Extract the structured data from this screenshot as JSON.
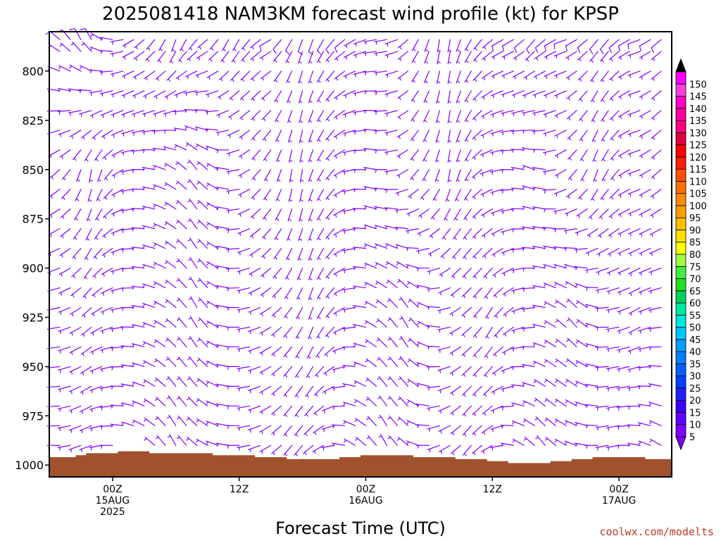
{
  "chart_data": {
    "type": "wind_barb_time_height",
    "title": "2025081418 NAM3KM forecast wind profile (kt) for KPSP",
    "xlabel": "Forecast Time (UTC)",
    "ylabel": "",
    "y_ticks": [
      800,
      825,
      850,
      875,
      900,
      925,
      950,
      975,
      1000
    ],
    "y_range_hpa": [
      780,
      1006
    ],
    "x_ticks": [
      {
        "hour": 6,
        "lines": [
          "00Z",
          "15AUG",
          "2025"
        ]
      },
      {
        "hour": 18,
        "lines": [
          "12Z"
        ]
      },
      {
        "hour": 30,
        "lines": [
          "00Z",
          "16AUG"
        ]
      },
      {
        "hour": 42,
        "lines": [
          "12Z"
        ]
      },
      {
        "hour": 54,
        "lines": [
          "00Z",
          "17AUG"
        ]
      }
    ],
    "x_range_hours": [
      0,
      59
    ],
    "barb_color": "#8000ff",
    "terrain_color": "#a0522d",
    "colorbar": {
      "levels": [
        5,
        10,
        15,
        20,
        25,
        30,
        35,
        40,
        45,
        50,
        55,
        60,
        65,
        70,
        75,
        80,
        85,
        90,
        95,
        100,
        105,
        110,
        115,
        120,
        125,
        130,
        135,
        140,
        145,
        150
      ],
      "colors": [
        "#8000ff",
        "#6000ff",
        "#3c00ff",
        "#2020ff",
        "#0040ff",
        "#0060ff",
        "#0080ff",
        "#00a0ff",
        "#00c8ff",
        "#00e8e0",
        "#00e8a0",
        "#00d060",
        "#20e020",
        "#40f040",
        "#a0ff40",
        "#ffff00",
        "#ffe000",
        "#ffc000",
        "#ffa000",
        "#ff8c00",
        "#ff7000",
        "#ff5000",
        "#ff2000",
        "#ff0000",
        "#e00040",
        "#ff0080",
        "#ff00a0",
        "#ff00c8",
        "#ff40e0",
        "#ff00ff"
      ],
      "top_triangle_color": "#000000",
      "bottom_triangle_color": "#8000ff"
    },
    "barb_levels_hpa": [
      784,
      790,
      800,
      810,
      820,
      830,
      840,
      850,
      860,
      870,
      880,
      890,
      900,
      910,
      920,
      930,
      940,
      950,
      960,
      970,
      980,
      990
    ],
    "surface_pressure_hpa": [
      [
        0,
        996
      ],
      [
        1,
        996
      ],
      [
        2,
        996
      ],
      [
        3,
        995
      ],
      [
        4,
        994
      ],
      [
        5,
        994
      ],
      [
        6,
        994
      ],
      [
        7,
        993
      ],
      [
        8,
        993
      ],
      [
        9,
        993
      ],
      [
        10,
        994
      ],
      [
        11,
        994
      ],
      [
        12,
        994
      ],
      [
        13,
        994
      ],
      [
        14,
        994
      ],
      [
        15,
        994
      ],
      [
        16,
        995
      ],
      [
        17,
        995
      ],
      [
        18,
        995
      ],
      [
        19,
        995
      ],
      [
        20,
        996
      ],
      [
        21,
        996
      ],
      [
        22,
        996
      ],
      [
        23,
        997
      ],
      [
        24,
        997
      ],
      [
        25,
        997
      ],
      [
        26,
        997
      ],
      [
        27,
        997
      ],
      [
        28,
        996
      ],
      [
        29,
        996
      ],
      [
        30,
        995
      ],
      [
        31,
        995
      ],
      [
        32,
        995
      ],
      [
        33,
        995
      ],
      [
        34,
        995
      ],
      [
        35,
        996
      ],
      [
        36,
        996
      ],
      [
        37,
        996
      ],
      [
        38,
        996
      ],
      [
        39,
        997
      ],
      [
        40,
        997
      ],
      [
        41,
        997
      ],
      [
        42,
        998
      ],
      [
        43,
        998
      ],
      [
        44,
        999
      ],
      [
        45,
        999
      ],
      [
        46,
        999
      ],
      [
        47,
        999
      ],
      [
        48,
        998
      ],
      [
        49,
        998
      ],
      [
        50,
        997
      ],
      [
        51,
        997
      ],
      [
        52,
        996
      ],
      [
        53,
        996
      ],
      [
        54,
        996
      ],
      [
        55,
        996
      ],
      [
        56,
        996
      ],
      [
        57,
        997
      ],
      [
        58,
        997
      ],
      [
        59,
        997
      ]
    ],
    "wind_samples": [
      {
        "p": 784,
        "dir": [
          300,
          310,
          320,
          330,
          330,
          300,
          280,
          260,
          240,
          230,
          220,
          210,
          200,
          210,
          220,
          230,
          220,
          210,
          210,
          220,
          230,
          240,
          220,
          210,
          200,
          200,
          210,
          220,
          230,
          240,
          250,
          260,
          260,
          250,
          230,
          210,
          200,
          190,
          190,
          200,
          210,
          220,
          230,
          240,
          240,
          230,
          220,
          230,
          240,
          250,
          240,
          230,
          220,
          220,
          230,
          240,
          250,
          240,
          230,
          230
        ],
        "spd": [
          10,
          10,
          10,
          10,
          10,
          8,
          8,
          8,
          8,
          8,
          8,
          8,
          8,
          8,
          8,
          8,
          8,
          8,
          8,
          8,
          8,
          10,
          10,
          10,
          10,
          10,
          10,
          10,
          10,
          8,
          8,
          8,
          8,
          8,
          8,
          8,
          8,
          8,
          8,
          8,
          8,
          8,
          8,
          10,
          10,
          10,
          10,
          10,
          10,
          10,
          10,
          10,
          10,
          10,
          10,
          10,
          10,
          10,
          10,
          10
        ]
      },
      {
        "p": 850,
        "dir": [
          240,
          230,
          220,
          200,
          190,
          200,
          220,
          240,
          260,
          270,
          280,
          290,
          300,
          310,
          320,
          310,
          300,
          280,
          260,
          240,
          220,
          210,
          200,
          190,
          190,
          200,
          210,
          220,
          240,
          260,
          270,
          280,
          270,
          260,
          240,
          220,
          210,
          200,
          190,
          200,
          210,
          230,
          250,
          260,
          270,
          280,
          290,
          280,
          260,
          240,
          220,
          210,
          200,
          210,
          220,
          240,
          250,
          240,
          230,
          220
        ],
        "spd": [
          5,
          5,
          5,
          5,
          5,
          5,
          5,
          5,
          5,
          5,
          5,
          5,
          5,
          5,
          5,
          5,
          5,
          5,
          5,
          5,
          5,
          5,
          5,
          5,
          5,
          5,
          5,
          5,
          5,
          5,
          5,
          5,
          5,
          5,
          5,
          5,
          5,
          5,
          5,
          5,
          5,
          5,
          5,
          5,
          5,
          5,
          5,
          5,
          5,
          5,
          5,
          5,
          5,
          5,
          5,
          5,
          5,
          5,
          5,
          5
        ]
      },
      {
        "p": 925,
        "dir": [
          270,
          260,
          250,
          240,
          230,
          240,
          250,
          260,
          270,
          280,
          290,
          300,
          310,
          320,
          330,
          320,
          300,
          280,
          270,
          260,
          250,
          240,
          230,
          220,
          210,
          200,
          210,
          220,
          240,
          260,
          280,
          300,
          310,
          320,
          330,
          320,
          300,
          280,
          260,
          240,
          230,
          220,
          210,
          220,
          230,
          250,
          260,
          280,
          300,
          310,
          320,
          310,
          290,
          270,
          260,
          250,
          240,
          250,
          260,
          270
        ],
        "spd": [
          5,
          5,
          5,
          5,
          5,
          5,
          5,
          5,
          5,
          5,
          5,
          5,
          5,
          5,
          5,
          5,
          5,
          5,
          5,
          5,
          5,
          5,
          5,
          5,
          5,
          5,
          5,
          5,
          5,
          5,
          5,
          5,
          5,
          5,
          5,
          5,
          5,
          5,
          5,
          5,
          5,
          5,
          5,
          5,
          5,
          5,
          5,
          5,
          5,
          5,
          5,
          5,
          5,
          5,
          5,
          5,
          5,
          5,
          5,
          5
        ]
      },
      {
        "p": 990,
        "dir": [
          280,
          270,
          260,
          250,
          250,
          260,
          270,
          280,
          290,
          300,
          310,
          320,
          330,
          320,
          310,
          300,
          290,
          280,
          270,
          260,
          250,
          240,
          230,
          220,
          220,
          230,
          240,
          260,
          280,
          300,
          310,
          320,
          330,
          320,
          310,
          290,
          270,
          250,
          240,
          230,
          220,
          230,
          240,
          260,
          280,
          300,
          310,
          320,
          310,
          300,
          290,
          280,
          270,
          260,
          260,
          270,
          280,
          290,
          300,
          300
        ],
        "spd": [
          5,
          5,
          5,
          5,
          5,
          5,
          5,
          5,
          5,
          5,
          5,
          5,
          5,
          5,
          5,
          5,
          5,
          5,
          5,
          5,
          5,
          5,
          5,
          5,
          5,
          5,
          5,
          5,
          5,
          5,
          5,
          5,
          5,
          5,
          5,
          5,
          5,
          5,
          5,
          5,
          5,
          5,
          5,
          5,
          5,
          5,
          5,
          5,
          5,
          5,
          5,
          5,
          5,
          5,
          5,
          5,
          5,
          5,
          5,
          5
        ]
      }
    ]
  },
  "credit": "coolwx.com/modelts"
}
